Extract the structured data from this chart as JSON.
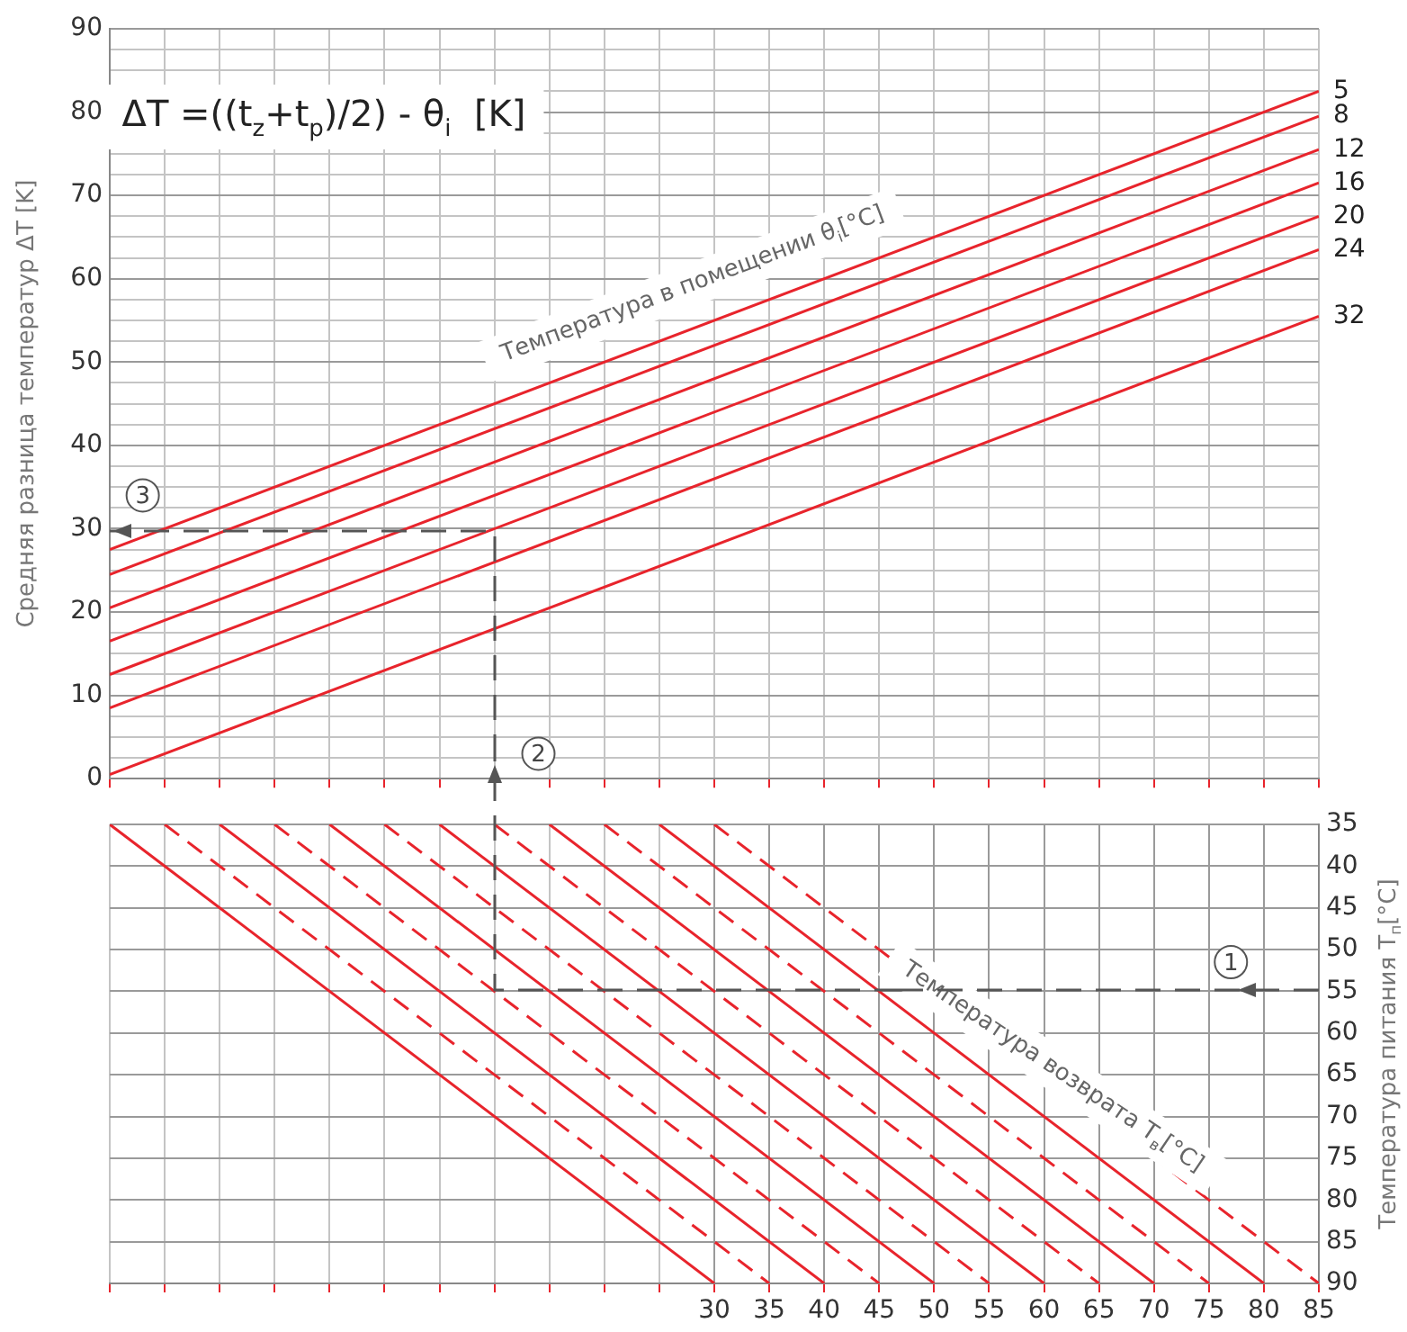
{
  "chart_data": [
    {
      "type": "line",
      "ylabel": "Средняя разница температур ΔT [K]",
      "x": [
        -25,
        85
      ],
      "xlim": [
        -25,
        85
      ],
      "xticks": [
        {
          "value": -25,
          "label": null
        },
        {
          "value": -20,
          "label": null
        },
        {
          "value": -15,
          "label": null
        },
        {
          "value": -10,
          "label": null
        },
        {
          "value": -5,
          "label": null
        },
        {
          "value": 0,
          "label": null
        },
        {
          "value": 5,
          "label": null
        },
        {
          "value": 10,
          "label": null
        },
        {
          "value": 15,
          "label": null
        },
        {
          "value": 20,
          "label": null
        },
        {
          "value": 25,
          "label": null
        },
        {
          "value": 30,
          "label": null
        },
        {
          "value": 35,
          "label": null
        },
        {
          "value": 40,
          "label": null
        },
        {
          "value": 45,
          "label": null
        },
        {
          "value": 50,
          "label": null
        },
        {
          "value": 55,
          "label": null
        },
        {
          "value": 60,
          "label": null
        },
        {
          "value": 65,
          "label": null
        },
        {
          "value": 70,
          "label": null
        },
        {
          "value": 75,
          "label": null
        },
        {
          "value": 80,
          "label": null
        },
        {
          "value": 85,
          "label": null
        }
      ],
      "ylim": [
        0,
        90
      ],
      "yticks": [
        0,
        {
          "value": 2.5,
          "label": null
        },
        {
          "value": 5,
          "label": null
        },
        {
          "value": 7.5,
          "label": null
        },
        10,
        {
          "value": 12.5,
          "label": null
        },
        {
          "value": 15,
          "label": null
        },
        {
          "value": 17.5,
          "label": null
        },
        20,
        {
          "value": 22.5,
          "label": null
        },
        {
          "value": 25,
          "label": null
        },
        {
          "value": 27.5,
          "label": null
        },
        30,
        {
          "value": 32.5,
          "label": null
        },
        {
          "value": 35,
          "label": null
        },
        {
          "value": 37.5,
          "label": null
        },
        40,
        {
          "value": 42.5,
          "label": null
        },
        {
          "value": 45,
          "label": null
        },
        {
          "value": 47.5,
          "label": null
        },
        50,
        {
          "value": 52.5,
          "label": null
        },
        {
          "value": 55,
          "label": null
        },
        {
          "value": 57.5,
          "label": null
        },
        60,
        {
          "value": 62.5,
          "label": null
        },
        {
          "value": 65,
          "label": null
        },
        {
          "value": 67.5,
          "label": null
        },
        70,
        {
          "value": 72.5,
          "label": null
        },
        {
          "value": 75,
          "label": null
        },
        {
          "value": 77.5,
          "label": null
        },
        80,
        {
          "value": 82.5,
          "label": null
        },
        {
          "value": 85,
          "label": null
        },
        {
          "value": 87.5,
          "label": null
        },
        90
      ],
      "tick_labels": "y",
      "grid": true,
      "legend": false,
      "marker": "none",
      "line_style": "solid",
      "series": [
        {
          "name": "5",
          "color": "#e8242c",
          "values": [
            27.5,
            82.5
          ]
        },
        {
          "name": "8",
          "color": "#e8242c",
          "values": [
            24.5,
            79.5
          ]
        },
        {
          "name": "12",
          "color": "#e8242c",
          "values": [
            20.5,
            75.5
          ]
        },
        {
          "name": "16",
          "color": "#e8242c",
          "values": [
            16.5,
            71.5
          ]
        },
        {
          "name": "20",
          "color": "#e8242c",
          "values": [
            12.5,
            67.5
          ]
        },
        {
          "name": "24",
          "color": "#e8242c",
          "values": [
            8.5,
            63.5
          ]
        },
        {
          "name": "32",
          "color": "#e8242c",
          "values": [
            0.5,
            55.5
          ]
        }
      ],
      "annotations": [
        "ΔT =((t$_{z}$+t$_{p}$)/2) - θ$_{i}$  [K]",
        "Температура в помещении θ$_{i}$[°C]",
        {
          "text": "3",
          "x": -22,
          "y": 34
        },
        {
          "text": "2",
          "x": 14,
          "y": 3
        }
      ]
    },
    {
      "type": "line",
      "ylabel": "Температура питания T$_{п}$[°C]",
      "xlim": [
        -25,
        85
      ],
      "xticks": [
        {
          "value": -25,
          "label": null
        },
        {
          "value": -20,
          "label": null
        },
        {
          "value": -15,
          "label": null
        },
        {
          "value": -10,
          "label": null
        },
        {
          "value": -5,
          "label": null
        },
        {
          "value": 0,
          "label": null
        },
        {
          "value": 5,
          "label": null
        },
        {
          "value": 10,
          "label": null
        },
        {
          "value": 15,
          "label": null
        },
        {
          "value": 20,
          "label": null
        },
        {
          "value": 25,
          "label": null
        },
        30,
        35,
        40,
        45,
        50,
        55,
        60,
        65,
        70,
        75,
        80,
        85
      ],
      "ylim": [
        90,
        35
      ],
      "yticks": [
        35,
        40,
        45,
        50,
        55,
        60,
        65,
        70,
        75,
        80,
        85,
        90
      ],
      "grid": true,
      "legend": false,
      "marker": "none",
      "series": [
        {
          "color": "#e8242c",
          "line_style": "solid",
          "x": [
            -25,
            30
          ],
          "values": [
            35,
            90
          ]
        },
        {
          "color": "#e8242c",
          "line_style": "dashed",
          "x": [
            -20,
            35
          ],
          "values": [
            35,
            90
          ]
        },
        {
          "color": "#e8242c",
          "line_style": "solid",
          "x": [
            -15,
            40
          ],
          "values": [
            35,
            90
          ]
        },
        {
          "color": "#e8242c",
          "line_style": "dashed",
          "x": [
            -10,
            45
          ],
          "values": [
            35,
            90
          ]
        },
        {
          "color": "#e8242c",
          "line_style": "solid",
          "x": [
            -5,
            50
          ],
          "values": [
            35,
            90
          ]
        },
        {
          "color": "#e8242c",
          "line_style": "dashed",
          "x": [
            0,
            55
          ],
          "values": [
            35,
            90
          ]
        },
        {
          "color": "#e8242c",
          "line_style": "solid",
          "x": [
            5,
            60
          ],
          "values": [
            35,
            90
          ]
        },
        {
          "color": "#e8242c",
          "line_style": "dashed",
          "x": [
            10,
            65
          ],
          "values": [
            35,
            90
          ]
        },
        {
          "color": "#e8242c",
          "line_style": "solid",
          "x": [
            15,
            70
          ],
          "values": [
            35,
            90
          ]
        },
        {
          "color": "#e8242c",
          "line_style": "dashed",
          "x": [
            20,
            75
          ],
          "values": [
            35,
            90
          ]
        },
        {
          "color": "#e8242c",
          "line_style": "solid",
          "x": [
            25,
            80
          ],
          "values": [
            35,
            90
          ]
        },
        {
          "color": "#e8242c",
          "line_style": "dashed",
          "x": [
            30,
            85
          ],
          "values": [
            35,
            90
          ]
        }
      ],
      "annotations": [
        "Температура возврата T$_{в}$[°C]",
        {
          "text": "1",
          "x": 77,
          "y": 51.5
        }
      ]
    }
  ]
}
